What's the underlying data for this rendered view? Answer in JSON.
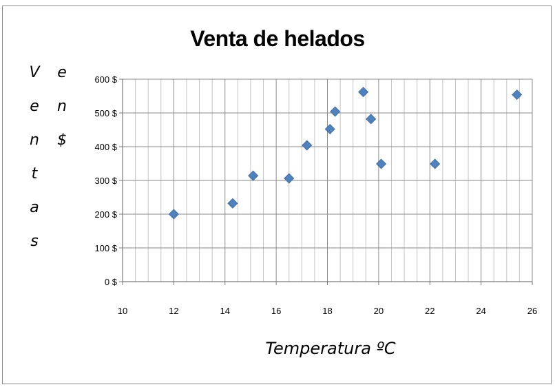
{
  "chart_data": {
    "type": "scatter",
    "title": "Venta de helados",
    "xlabel": "Temperatura ºC",
    "ylabel": "Ventas en $",
    "ylabel_columns": [
      [
        "V",
        "e",
        "n",
        "t",
        "a",
        "s"
      ],
      [
        "e",
        "n",
        "$"
      ]
    ],
    "xlim": [
      10,
      26
    ],
    "ylim": [
      0,
      600
    ],
    "x_ticks": [
      "10",
      "12",
      "14",
      "16",
      "18",
      "20",
      "22",
      "24",
      "26"
    ],
    "x_tick_values": [
      10,
      12,
      14,
      16,
      18,
      20,
      22,
      24,
      26
    ],
    "y_ticks": [
      "0 $",
      "100 $",
      "200 $",
      "300 $",
      "400 $",
      "500 $",
      "600 $"
    ],
    "y_tick_values": [
      0,
      100,
      200,
      300,
      400,
      500,
      600
    ],
    "grid": true,
    "marker": "diamond",
    "marker_color": "#4f81bd",
    "points": [
      {
        "x": 12.0,
        "y": 200
      },
      {
        "x": 14.3,
        "y": 232
      },
      {
        "x": 15.1,
        "y": 314
      },
      {
        "x": 16.5,
        "y": 306
      },
      {
        "x": 17.2,
        "y": 404
      },
      {
        "x": 18.1,
        "y": 452
      },
      {
        "x": 18.3,
        "y": 504
      },
      {
        "x": 19.4,
        "y": 562
      },
      {
        "x": 19.7,
        "y": 482
      },
      {
        "x": 20.1,
        "y": 349
      },
      {
        "x": 22.2,
        "y": 349
      },
      {
        "x": 25.4,
        "y": 554
      }
    ]
  }
}
